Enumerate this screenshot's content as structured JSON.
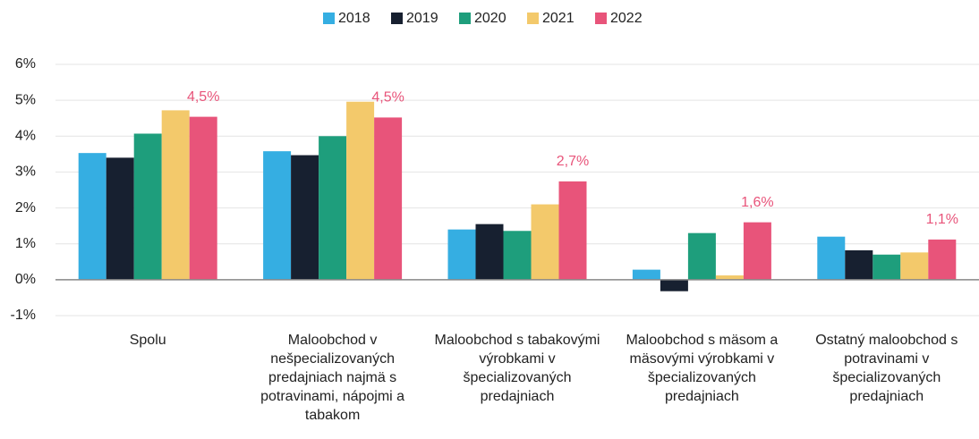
{
  "chart_data": {
    "type": "bar",
    "categories": [
      "Spolu",
      "Maloobchod v nešpecializovaných predajniach najmä s potravinami, nápojmi a tabakom",
      "Maloobchod s tabakovými výrobkami v špecializovaných predajniach",
      "Maloobchod s mäsom a mäsovými výrobkami v špecializovaných predajniach",
      "Ostatný maloobchod s potravinami v špecializovaných predajniach"
    ],
    "series": [
      {
        "name": "2018",
        "color": "#35aee2",
        "values": [
          3.53,
          3.58,
          1.4,
          0.28,
          1.2
        ]
      },
      {
        "name": "2019",
        "color": "#172030",
        "values": [
          3.4,
          3.47,
          1.55,
          -0.32,
          0.82
        ]
      },
      {
        "name": "2020",
        "color": "#1e9e7c",
        "values": [
          4.07,
          4.0,
          1.36,
          1.3,
          0.7
        ]
      },
      {
        "name": "2021",
        "color": "#f3c96b",
        "values": [
          4.72,
          4.96,
          2.1,
          0.12,
          0.76
        ]
      },
      {
        "name": "2022",
        "color": "#e8547a",
        "values": [
          4.54,
          4.52,
          2.74,
          1.6,
          1.12
        ],
        "value_labels": [
          "4,5%",
          "4,5%",
          "2,7%",
          "1,6%",
          "1,1%"
        ]
      }
    ],
    "ylim": [
      -1,
      6
    ],
    "yticks": [
      {
        "value": -1,
        "label": "-1%"
      },
      {
        "value": 0,
        "label": "0%"
      },
      {
        "value": 1,
        "label": "1%"
      },
      {
        "value": 2,
        "label": "2%"
      },
      {
        "value": 3,
        "label": "3%"
      },
      {
        "value": 4,
        "label": "4%"
      },
      {
        "value": 5,
        "label": "5%"
      },
      {
        "value": 6,
        "label": "6%"
      }
    ],
    "grid": true,
    "legend": "top"
  }
}
